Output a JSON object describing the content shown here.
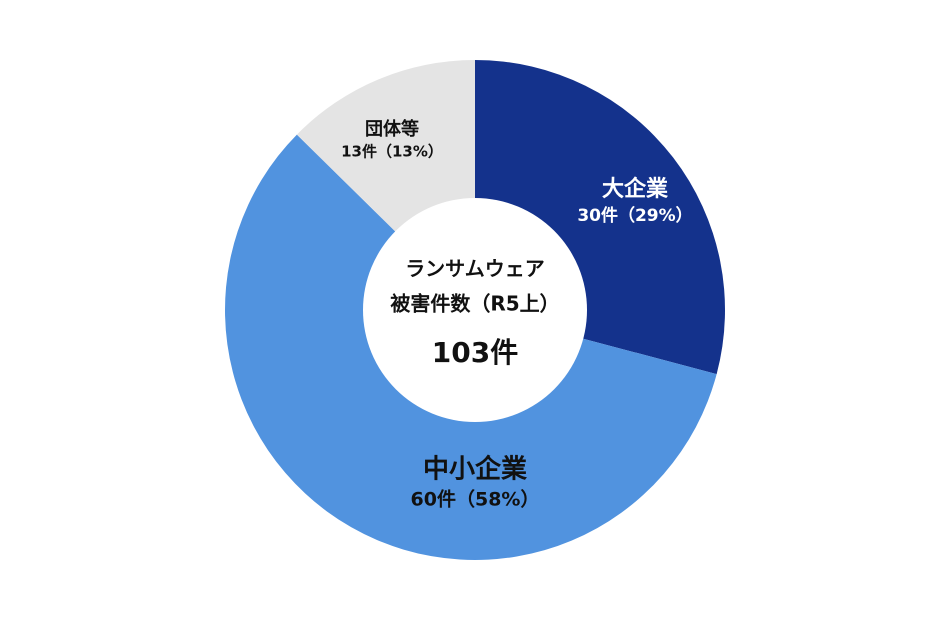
{
  "chart_data": {
    "type": "donut",
    "center_lines": [
      "ランサムウェア",
      "被害件数（R5上）"
    ],
    "total_label": "103件",
    "categories": [
      "大企業",
      "中小企業",
      "団体等"
    ],
    "values": [
      30,
      60,
      13
    ],
    "value_labels": [
      "30件（29%）",
      "60件（58%）",
      "13件（13%）"
    ],
    "colors": [
      "#14328c",
      "#5193df",
      "#e4e4e4"
    ]
  }
}
